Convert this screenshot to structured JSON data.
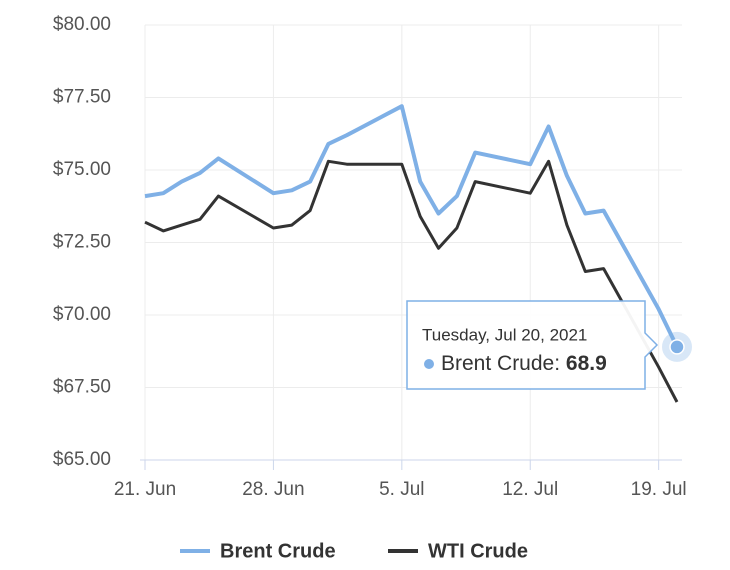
{
  "chart_data": {
    "type": "line",
    "x": [
      "2021-06-21",
      "2021-06-22",
      "2021-06-23",
      "2021-06-24",
      "2021-06-25",
      "2021-06-28",
      "2021-06-29",
      "2021-06-30",
      "2021-07-01",
      "2021-07-02",
      "2021-07-05",
      "2021-07-06",
      "2021-07-07",
      "2021-07-08",
      "2021-07-09",
      "2021-07-12",
      "2021-07-13",
      "2021-07-14",
      "2021-07-15",
      "2021-07-16",
      "2021-07-19",
      "2021-07-20"
    ],
    "series": [
      {
        "name": "Brent Crude",
        "color": "#7fb0e6",
        "values": [
          74.1,
          74.2,
          74.6,
          74.9,
          75.4,
          74.2,
          74.3,
          74.6,
          75.9,
          76.2,
          77.2,
          74.6,
          73.5,
          74.1,
          75.6,
          75.2,
          76.5,
          74.8,
          73.5,
          73.6,
          70.2,
          68.9
        ]
      },
      {
        "name": "WTI Crude",
        "color": "#333333",
        "values": [
          73.2,
          72.9,
          73.1,
          73.3,
          74.1,
          73.0,
          73.1,
          73.6,
          75.3,
          75.2,
          75.2,
          73.4,
          72.3,
          73.0,
          74.6,
          74.2,
          75.3,
          73.1,
          71.5,
          71.6,
          68.2,
          67.0
        ]
      }
    ],
    "xlim": [
      "2021-06-21",
      "2021-07-20"
    ],
    "xticks": [
      {
        "value": "2021-06-21",
        "label": "21. Jun"
      },
      {
        "value": "2021-06-28",
        "label": "28. Jun"
      },
      {
        "value": "2021-07-05",
        "label": "5. Jul"
      },
      {
        "value": "2021-07-12",
        "label": "12. Jul"
      },
      {
        "value": "2021-07-19",
        "label": "19. Jul"
      }
    ],
    "ylim": [
      65,
      80
    ],
    "yticks": [
      {
        "value": 65,
        "label": "$65.00"
      },
      {
        "value": 67.5,
        "label": "$67.50"
      },
      {
        "value": 70,
        "label": "$70.00"
      },
      {
        "value": 72.5,
        "label": "$72.50"
      },
      {
        "value": 75,
        "label": "$75.00"
      },
      {
        "value": 77.5,
        "label": "$77.50"
      },
      {
        "value": 80,
        "label": "$80.00"
      }
    ],
    "grid": true,
    "legend": "bottom",
    "tooltip": {
      "header": "Tuesday, Jul 20, 2021"
    }
  }
}
